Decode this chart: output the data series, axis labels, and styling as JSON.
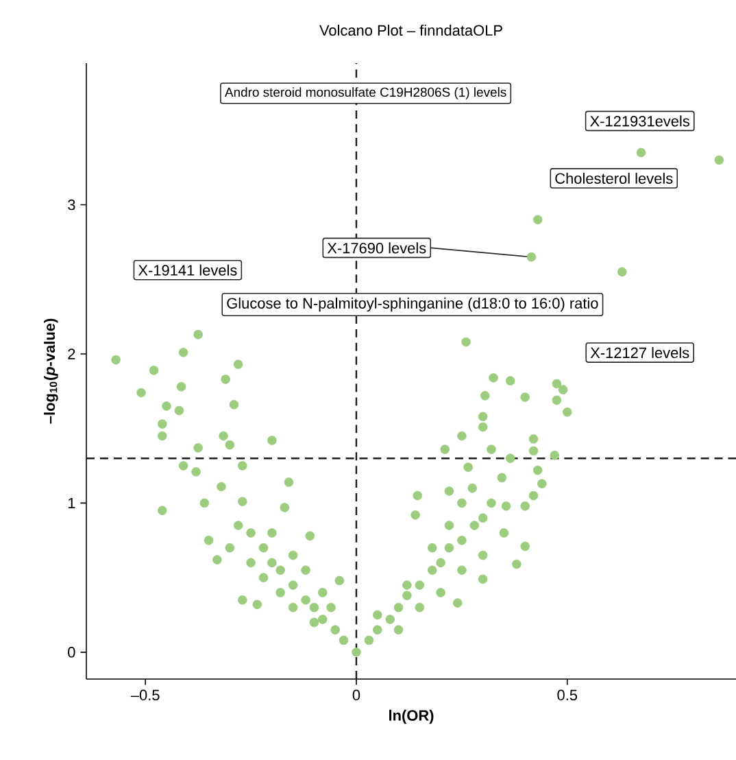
{
  "chart_data": {
    "type": "scatter",
    "title": "Volcano Plot – finndataOLP",
    "xlabel": "ln(OR)",
    "ylabel": "–log$_{10}$(*p*-value)",
    "xlim": [
      -0.64,
      0.9
    ],
    "ylim": [
      -0.18,
      3.95
    ],
    "xticks": [
      {
        "value": -0.5,
        "label": "–0.5"
      },
      0,
      0.5
    ],
    "yticks": [
      0,
      1,
      2,
      3
    ],
    "marker": "circle",
    "series": [
      {
        "color": "#9ccc7e",
        "x": [
          0.675,
          0.86,
          0.43,
          0.415,
          0.63,
          0.26,
          -0.375,
          -0.57,
          -0.48,
          -0.51,
          -0.415,
          -0.41,
          -0.28,
          -0.31,
          -0.29,
          -0.45,
          -0.42,
          -0.46,
          -0.46,
          -0.315,
          -0.3,
          -0.2,
          -0.375,
          -0.41,
          -0.38,
          -0.27,
          -0.16,
          -0.32,
          -0.36,
          -0.46,
          -0.27,
          -0.17,
          -0.11,
          -0.35,
          -0.33,
          -0.27,
          -0.235,
          -0.04,
          -0.28,
          -0.25,
          -0.22,
          -0.2,
          -0.18,
          -0.15,
          -0.12,
          -0.1,
          -0.08,
          -0.05,
          -0.03,
          0,
          -0.25,
          -0.22,
          -0.18,
          -0.15,
          -0.1,
          -0.3,
          -0.2,
          -0.15,
          -0.12,
          -0.08,
          -0.06,
          0.325,
          0.365,
          0.305,
          0.4,
          0.475,
          0.49,
          0.475,
          0.5,
          0.3,
          0.3,
          0.25,
          0.21,
          0.42,
          0.42,
          0.47,
          0.32,
          0.365,
          0.43,
          0.44,
          0.42,
          0.4,
          0.355,
          0.145,
          0.14,
          0.22,
          0.275,
          0.345,
          0.265,
          0.4,
          0.38,
          0.24,
          0.3,
          0.03,
          0.05,
          0.08,
          0.1,
          0.12,
          0.15,
          0.18,
          0.2,
          0.22,
          0.25,
          0.28,
          0.3,
          0.32,
          0.1,
          0.15,
          0.2,
          0.25,
          0.3,
          0.35,
          0.12,
          0.18,
          0.22,
          0.25,
          0.05
        ],
        "values": [
          3.35,
          3.3,
          2.9,
          2.65,
          2.55,
          2.08,
          2.13,
          1.96,
          1.89,
          1.74,
          1.78,
          2.01,
          1.93,
          1.83,
          1.66,
          1.65,
          1.62,
          1.53,
          1.45,
          1.45,
          1.39,
          1.42,
          1.37,
          1.25,
          1.21,
          1.25,
          1.14,
          1.11,
          1.0,
          0.95,
          1.01,
          0.97,
          0.78,
          0.75,
          0.62,
          0.35,
          0.32,
          0.48,
          0.85,
          0.8,
          0.7,
          0.6,
          0.55,
          0.45,
          0.35,
          0.3,
          0.22,
          0.15,
          0.08,
          0,
          0.6,
          0.5,
          0.4,
          0.3,
          0.2,
          0.7,
          0.8,
          0.65,
          0.55,
          0.4,
          0.3,
          1.84,
          1.82,
          1.72,
          1.71,
          1.8,
          1.76,
          1.69,
          1.61,
          1.58,
          1.51,
          1.45,
          1.36,
          1.43,
          1.35,
          1.32,
          1.36,
          1.3,
          1.22,
          1.13,
          1.05,
          0.98,
          0.98,
          1.05,
          0.92,
          1.08,
          1.1,
          1.17,
          1.24,
          0.71,
          0.59,
          0.33,
          0.49,
          0.08,
          0.15,
          0.22,
          0.3,
          0.38,
          0.45,
          0.55,
          0.6,
          0.7,
          0.75,
          0.85,
          0.9,
          1.0,
          0.15,
          0.3,
          0.4,
          0.55,
          0.65,
          0.8,
          0.45,
          0.7,
          0.85,
          1.0,
          0.25
        ]
      }
    ],
    "ref_lines": [
      {
        "axis": "x",
        "value": 0,
        "color": "#1a1a1a",
        "line_style": "dashed"
      },
      {
        "axis": "y",
        "value": 1.3,
        "color": "#1a1a1a",
        "line_style": "dashed"
      }
    ],
    "annotations": [
      "Andro steroid monosulfate C19H2806S (1) levels",
      "X-121931evels",
      "Cholesterol levels",
      {
        "text": "X-17690 levels",
        "x": 0.415,
        "y": 2.65
      },
      "X-19141 levels",
      "Glucose to N-palmitoyl-sphinganine (d18:0 to 16:0) ratio",
      "X-12127 levels"
    ]
  }
}
